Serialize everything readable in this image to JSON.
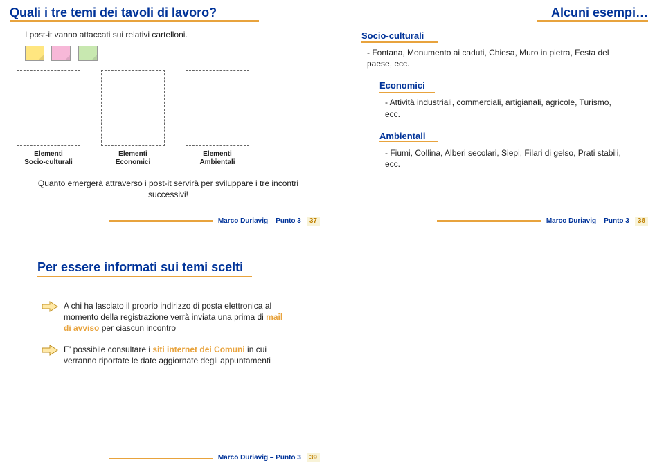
{
  "colors": {
    "title_navy": "#003399",
    "accent_orange": "#e8a33d",
    "num_bg": "#f8f3d8",
    "postit_yellow": "#ffe680",
    "postit_pink": "#f7b8d8",
    "postit_green": "#c8e8b0",
    "arrow_fill": "#ffe9a8",
    "arrow_stroke": "#c09020"
  },
  "slide37": {
    "title": "Quali i tre temi dei tavoli di lavoro?",
    "intro": "I post-it vanno attaccati sui relativi cartelloni.",
    "boards": [
      {
        "line1": "Elementi",
        "line2": "Socio-culturali"
      },
      {
        "line1": "Elementi",
        "line2": "Economici"
      },
      {
        "line1": "Elementi",
        "line2": "Ambientali"
      }
    ],
    "note": "Quanto emergerà attraverso i post-it servirà per sviluppare i tre incontri successivi!",
    "footer_text": "Marco Duriavig – Punto 3",
    "footer_num": "37"
  },
  "slide38": {
    "title": "Alcuni esempi…",
    "groups": [
      {
        "head": "Socio-culturali",
        "text": "- Fontana, Monumento ai caduti, Chiesa, Muro in pietra, Festa del paese, ecc."
      },
      {
        "head": "Economici",
        "text": "- Attività industriali, commerciali, artigianali, agricole, Turismo, ecc."
      },
      {
        "head": "Ambientali",
        "text": "- Fiumi, Collina, Alberi secolari, Siepi, Filari di gelso, Prati stabili, ecc."
      }
    ],
    "footer_text": "Marco Duriavig – Punto 3",
    "footer_num": "38"
  },
  "slide39": {
    "title": "Per essere informati sui temi scelti",
    "items": [
      {
        "parts": [
          {
            "t": "A chi ha lasciato il proprio indirizzo di posta elettronica al momento della registrazione verrà inviata una prima di ",
            "c": "#222",
            "b": false
          },
          {
            "t": "mail di avviso",
            "c": "#e8a33d",
            "b": true
          },
          {
            "t": " per ciascun incontro",
            "c": "#222",
            "b": false
          }
        ]
      },
      {
        "parts": [
          {
            "t": "E' possibile consultare i ",
            "c": "#222",
            "b": false
          },
          {
            "t": "siti internet dei Comuni",
            "c": "#e8a33d",
            "b": true
          },
          {
            "t": " in cui verranno riportate le date aggiornate degli appuntamenti",
            "c": "#222",
            "b": false
          }
        ]
      }
    ],
    "footer_text": "Marco Duriavig – Punto 3",
    "footer_num": "39"
  }
}
